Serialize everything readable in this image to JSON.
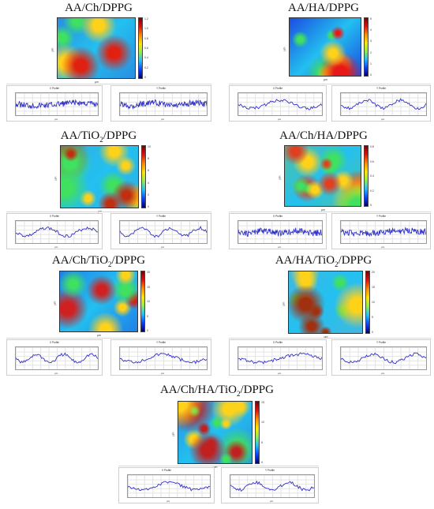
{
  "figure": {
    "panels": [
      {
        "title_parts": [
          "AA/Ch/DPPG"
        ],
        "map_axis_label": "µm",
        "colorbar_ticks": [
          "1.2",
          "1.0",
          "0.8",
          "0.6",
          "0.4",
          "0.2",
          "0"
        ],
        "profile_x": {
          "title": "X Profile",
          "unit": "µm"
        },
        "profile_y": {
          "title": "Y Profile",
          "unit": "µm"
        },
        "colors": {
          "base": "#2a8fe0",
          "hot": "#e02010"
        }
      },
      {
        "title_parts": [
          "AA/HA/DPPG"
        ],
        "map_axis_label": "µm",
        "colorbar_ticks": [
          "5",
          "4",
          "3",
          "2",
          "1",
          "0"
        ],
        "profile_x": {
          "title": "X Profile",
          "unit": "µm"
        },
        "profile_y": {
          "title": "Y Profile",
          "unit": "µm"
        },
        "colors": {
          "base": "#1a4de0",
          "hot": "#e81818"
        }
      },
      {
        "title_parts": [
          "AA/TiO",
          "2",
          "/DPPG"
        ],
        "map_axis_label": "µm",
        "colorbar_ticks": [
          "10",
          "8",
          "6",
          "4",
          "2",
          "0"
        ],
        "profile_x": {
          "title": "X Profile",
          "unit": "µm"
        },
        "profile_y": {
          "title": "Y Profile",
          "unit": "µm"
        },
        "colors": {
          "base": "#30b0e0",
          "hot": "#c03010"
        }
      },
      {
        "title_parts": [
          "AA/Ch/HA/DPPG"
        ],
        "map_axis_label": "µm",
        "colorbar_ticks": [
          "0.8",
          "0.6",
          "0.4",
          "0.2",
          "0"
        ],
        "profile_x": {
          "title": "X Profile",
          "unit": "µm"
        },
        "profile_y": {
          "title": "Y Profile",
          "unit": "µm"
        },
        "colors": {
          "base": "#50c0a0",
          "hot": "#e04020"
        }
      },
      {
        "title_parts": [
          "AA/Ch/TiO",
          "2",
          "/DPPG"
        ],
        "map_axis_label": "µm",
        "colorbar_ticks": [
          "20",
          "15",
          "10",
          "5",
          "0"
        ],
        "profile_x": {
          "title": "X Profile",
          "unit": "µm"
        },
        "profile_y": {
          "title": "Y Profile",
          "unit": "µm"
        },
        "colors": {
          "base": "#2080e8",
          "hot": "#d02020"
        }
      },
      {
        "title_parts": [
          "AA/HA/TiO",
          "2",
          "/DPPG"
        ],
        "map_axis_label": "µm",
        "colorbar_ticks": [
          "20",
          "15",
          "10",
          "5",
          "0"
        ],
        "profile_x": {
          "title": "X Profile",
          "unit": "µm"
        },
        "profile_y": {
          "title": "Y Profile",
          "unit": "µm"
        },
        "colors": {
          "base": "#40b8e0",
          "hot": "#a03010"
        }
      },
      {
        "title_parts": [
          "AA/Ch/HA/TiO",
          "2",
          "/DPPG"
        ],
        "map_axis_label": "µm",
        "colorbar_ticks": [
          "15",
          "10",
          "5",
          "0"
        ],
        "profile_x": {
          "title": "X Profile",
          "unit": "µm"
        },
        "profile_y": {
          "title": "Y Profile",
          "unit": "µm"
        },
        "colors": {
          "base": "#2a90e0",
          "hot": "#c02020"
        }
      }
    ]
  }
}
